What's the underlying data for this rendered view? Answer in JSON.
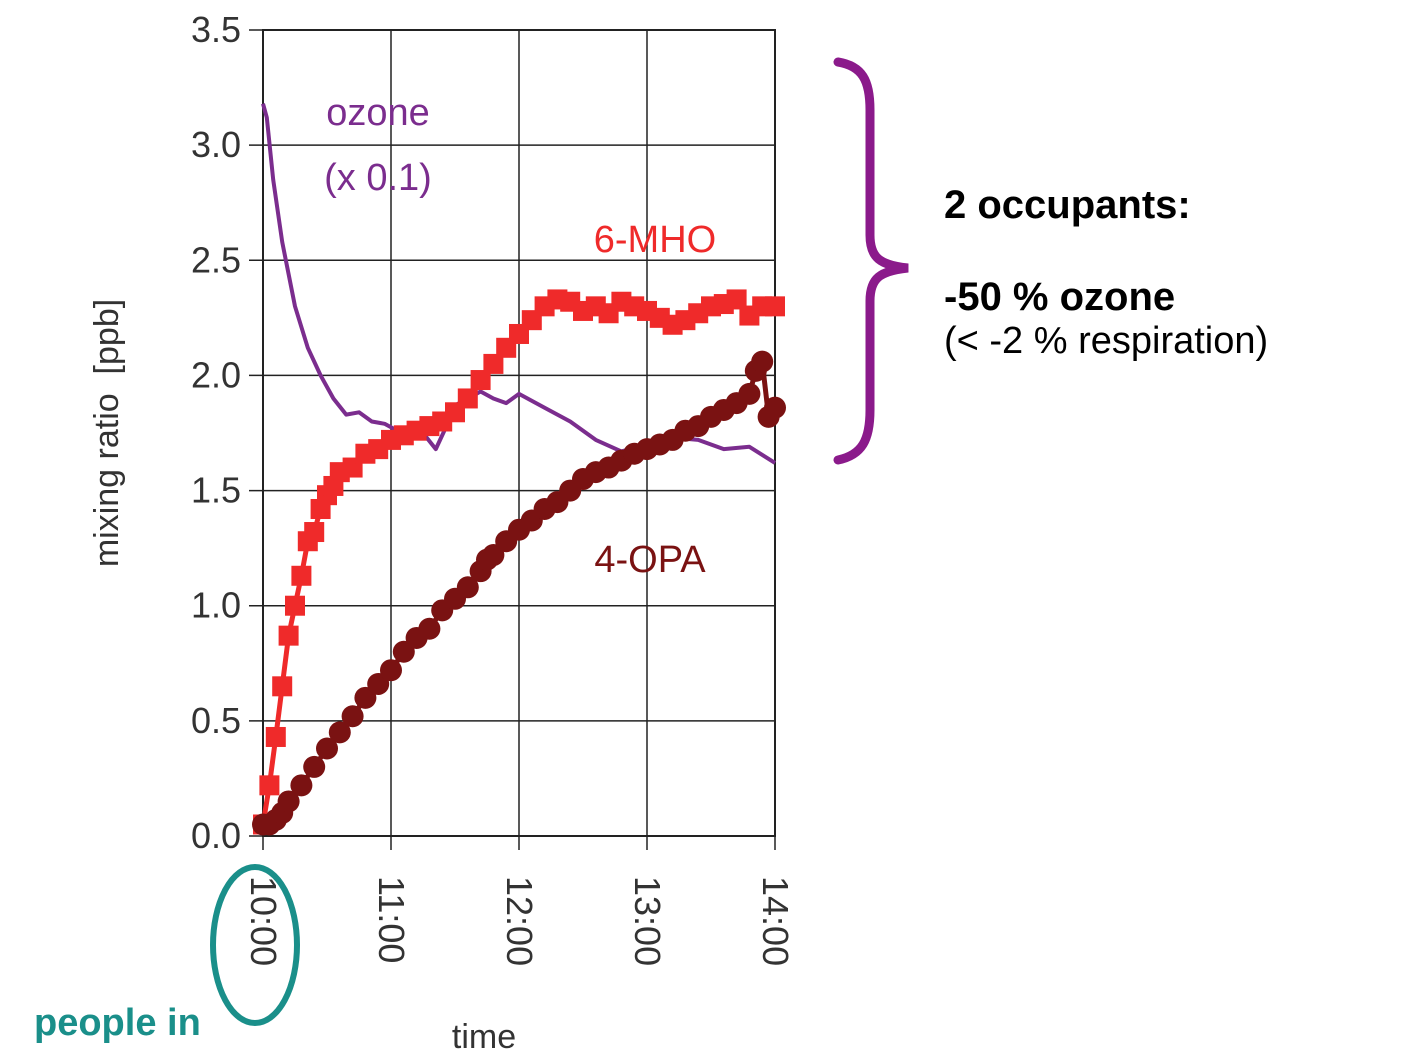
{
  "chart_data": {
    "type": "line",
    "xlabel": "time",
    "ylabel": "mixing ratio  [ppb]",
    "ylim": [
      0,
      3.5
    ],
    "yticks": [
      "0.0",
      "0.5",
      "1.0",
      "1.5",
      "2.0",
      "2.5",
      "3.0",
      "3.5"
    ],
    "xticks": [
      "10:00",
      "11:00",
      "12:00",
      "13:00",
      "14:00"
    ],
    "grid": true,
    "series": [
      {
        "name": "ozone\n(x 0.1)",
        "label_lines": [
          "ozone",
          "(x 0.1)"
        ],
        "color": "#7b2d8e",
        "marker": "none",
        "x": [
          10.0,
          10.03,
          10.08,
          10.15,
          10.25,
          10.35,
          10.45,
          10.55,
          10.65,
          10.75,
          10.85,
          10.95,
          11.05,
          11.15,
          11.25,
          11.35,
          11.45,
          11.5,
          11.6,
          11.7,
          11.8,
          11.9,
          12.0,
          12.2,
          12.4,
          12.6,
          12.8,
          13.0,
          13.2,
          13.4,
          13.6,
          13.8,
          14.0
        ],
        "y": [
          3.18,
          3.12,
          2.85,
          2.58,
          2.3,
          2.12,
          2.0,
          1.9,
          1.83,
          1.84,
          1.8,
          1.79,
          1.76,
          1.74,
          1.75,
          1.68,
          1.8,
          1.87,
          1.9,
          1.93,
          1.9,
          1.88,
          1.92,
          1.86,
          1.8,
          1.72,
          1.67,
          1.7,
          1.73,
          1.72,
          1.68,
          1.69,
          1.62
        ]
      },
      {
        "name": "6-MHO",
        "color": "#ef2a2a",
        "marker": "square",
        "x": [
          10.0,
          10.05,
          10.1,
          10.15,
          10.2,
          10.25,
          10.3,
          10.35,
          10.4,
          10.45,
          10.5,
          10.55,
          10.6,
          10.7,
          10.8,
          10.9,
          11.0,
          11.1,
          11.2,
          11.3,
          11.4,
          11.5,
          11.6,
          11.7,
          11.8,
          11.9,
          12.0,
          12.1,
          12.2,
          12.3,
          12.4,
          12.5,
          12.6,
          12.7,
          12.8,
          12.9,
          13.0,
          13.1,
          13.2,
          13.3,
          13.4,
          13.5,
          13.6,
          13.7,
          13.8,
          13.9,
          14.0
        ],
        "y": [
          0.05,
          0.22,
          0.43,
          0.65,
          0.87,
          1.0,
          1.13,
          1.28,
          1.32,
          1.42,
          1.48,
          1.52,
          1.58,
          1.6,
          1.66,
          1.68,
          1.72,
          1.74,
          1.76,
          1.78,
          1.8,
          1.84,
          1.9,
          1.98,
          2.05,
          2.12,
          2.18,
          2.24,
          2.3,
          2.33,
          2.32,
          2.28,
          2.3,
          2.27,
          2.32,
          2.3,
          2.28,
          2.25,
          2.22,
          2.24,
          2.27,
          2.3,
          2.31,
          2.33,
          2.26,
          2.3,
          2.3
        ]
      },
      {
        "name": "4-OPA",
        "color": "#7a1212",
        "marker": "circle",
        "x": [
          10.0,
          10.05,
          10.1,
          10.15,
          10.2,
          10.3,
          10.4,
          10.5,
          10.6,
          10.7,
          10.8,
          10.9,
          11.0,
          11.1,
          11.2,
          11.3,
          11.4,
          11.5,
          11.6,
          11.7,
          11.75,
          11.8,
          11.9,
          12.0,
          12.1,
          12.2,
          12.3,
          12.4,
          12.5,
          12.6,
          12.7,
          12.8,
          12.9,
          13.0,
          13.1,
          13.2,
          13.3,
          13.4,
          13.5,
          13.6,
          13.7,
          13.8,
          13.85,
          13.9,
          13.95,
          14.0
        ],
        "y": [
          0.05,
          0.05,
          0.07,
          0.1,
          0.15,
          0.22,
          0.3,
          0.38,
          0.45,
          0.52,
          0.6,
          0.66,
          0.72,
          0.8,
          0.86,
          0.9,
          0.98,
          1.03,
          1.08,
          1.15,
          1.2,
          1.22,
          1.28,
          1.33,
          1.37,
          1.42,
          1.45,
          1.5,
          1.55,
          1.58,
          1.6,
          1.63,
          1.66,
          1.68,
          1.7,
          1.72,
          1.76,
          1.78,
          1.82,
          1.85,
          1.88,
          1.92,
          2.02,
          2.06,
          1.82,
          1.86
        ]
      }
    ]
  },
  "annotation": {
    "title": "2 occupants:",
    "main": "-50 % ozone",
    "sub": "(< -2 % respiration)",
    "brace_color": "#8b1a8b"
  },
  "marker_note": {
    "text": "people in",
    "color": "#1a8f8a"
  }
}
